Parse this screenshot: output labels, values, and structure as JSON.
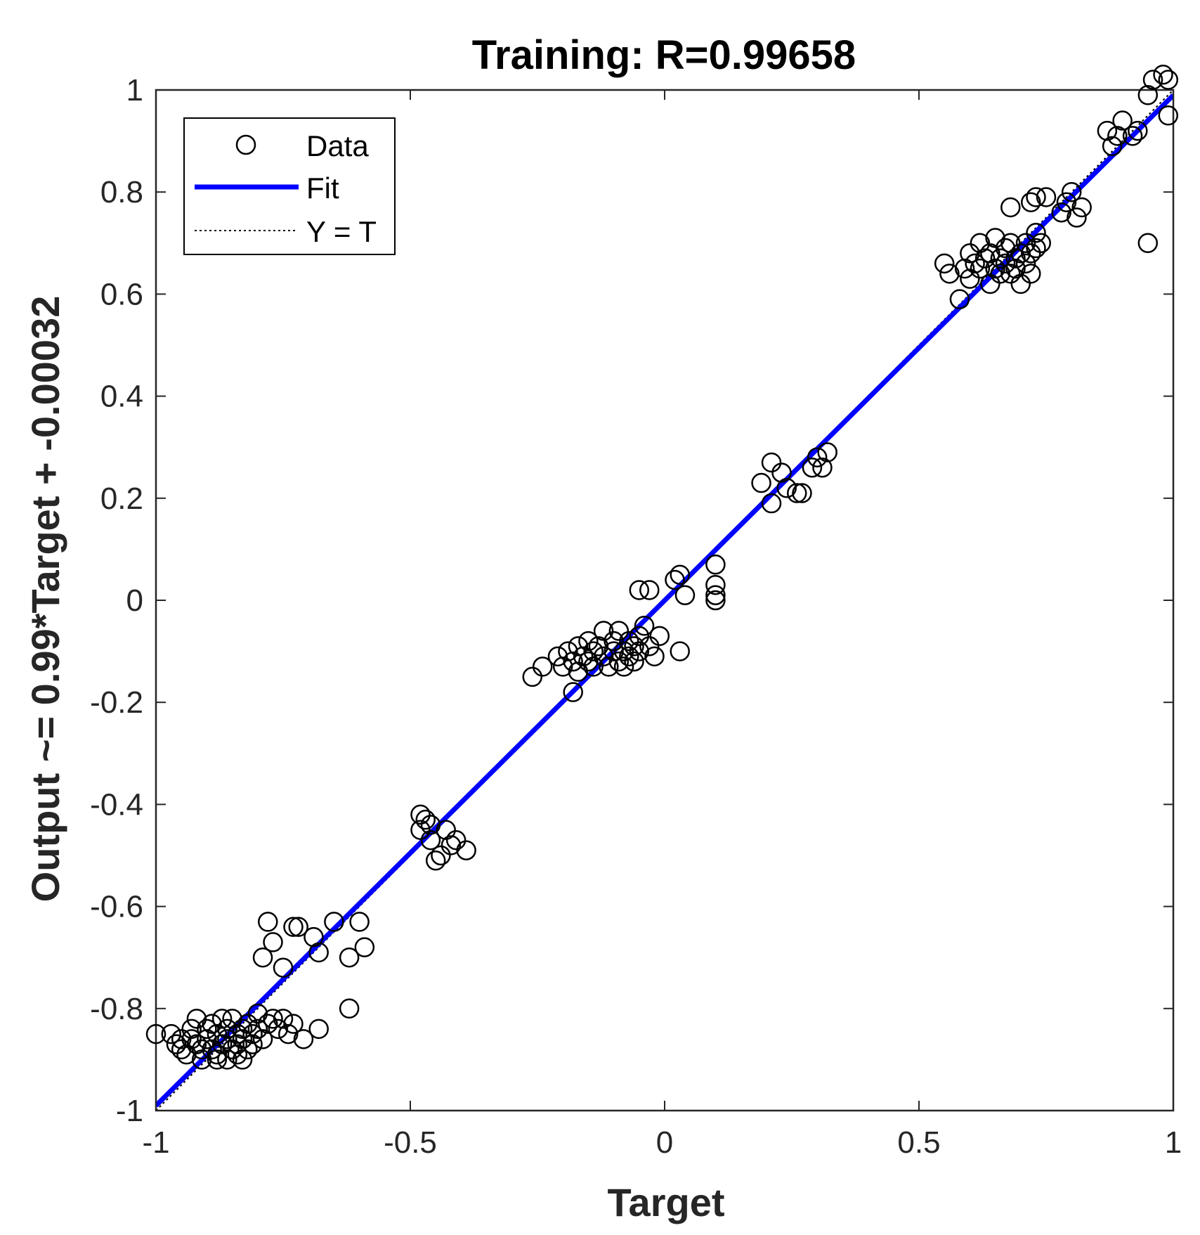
{
  "chart_data": {
    "type": "scatter",
    "title": "Training: R=0.99658",
    "xlabel": "Target",
    "ylabel": "Output ~= 0.99*Target + -0.00032",
    "xlim": [
      -1,
      1
    ],
    "ylim": [
      -1,
      1
    ],
    "xticks": [
      "-1",
      "-0.5",
      "0",
      "0.5",
      "1"
    ],
    "yticks": [
      "-1",
      "-0.8",
      "-0.6",
      "-0.4",
      "-0.2",
      "0",
      "0.2",
      "0.4",
      "0.6",
      "0.8",
      "1"
    ],
    "grid": false,
    "legend_position": "top-left",
    "legend": [
      "Data",
      "Fit",
      "Y = T"
    ],
    "colors": {
      "data": "#000000",
      "fit": "#0000ff",
      "identity": "#000000"
    },
    "fit": {
      "slope": 0.99,
      "intercept": -0.00032
    },
    "identity": {
      "slope": 1,
      "intercept": 0
    },
    "series": [
      {
        "name": "Data",
        "points": [
          [
            -1.0,
            -0.85
          ],
          [
            -0.97,
            -0.85
          ],
          [
            -0.96,
            -0.87
          ],
          [
            -0.95,
            -0.88
          ],
          [
            -0.94,
            -0.89
          ],
          [
            -0.93,
            -0.86
          ],
          [
            -0.92,
            -0.82
          ],
          [
            -0.92,
            -0.87
          ],
          [
            -0.91,
            -0.88
          ],
          [
            -0.9,
            -0.84
          ],
          [
            -0.9,
            -0.86
          ],
          [
            -0.89,
            -0.83
          ],
          [
            -0.89,
            -0.88
          ],
          [
            -0.88,
            -0.85
          ],
          [
            -0.88,
            -0.89
          ],
          [
            -0.87,
            -0.87
          ],
          [
            -0.87,
            -0.82
          ],
          [
            -0.86,
            -0.86
          ],
          [
            -0.86,
            -0.84
          ],
          [
            -0.85,
            -0.88
          ],
          [
            -0.85,
            -0.82
          ],
          [
            -0.84,
            -0.85
          ],
          [
            -0.84,
            -0.89
          ],
          [
            -0.84,
            -0.87
          ],
          [
            -0.83,
            -0.84
          ],
          [
            -0.83,
            -0.86
          ],
          [
            -0.82,
            -0.88
          ],
          [
            -0.82,
            -0.83
          ],
          [
            -0.81,
            -0.85
          ],
          [
            -0.81,
            -0.87
          ],
          [
            -0.8,
            -0.84
          ],
          [
            -0.8,
            -0.81
          ],
          [
            -0.79,
            -0.86
          ],
          [
            -0.78,
            -0.83
          ],
          [
            -0.77,
            -0.82
          ],
          [
            -0.76,
            -0.84
          ],
          [
            -0.75,
            -0.82
          ],
          [
            -0.74,
            -0.85
          ],
          [
            -0.73,
            -0.83
          ],
          [
            -0.71,
            -0.86
          ],
          [
            -0.68,
            -0.84
          ],
          [
            -0.62,
            -0.8
          ],
          [
            -0.88,
            -0.9
          ],
          [
            -0.86,
            -0.9
          ],
          [
            -0.83,
            -0.9
          ],
          [
            -0.93,
            -0.84
          ],
          [
            -0.95,
            -0.86
          ],
          [
            -0.91,
            -0.9
          ],
          [
            -0.78,
            -0.63
          ],
          [
            -0.77,
            -0.67
          ],
          [
            -0.79,
            -0.7
          ],
          [
            -0.75,
            -0.72
          ],
          [
            -0.73,
            -0.64
          ],
          [
            -0.72,
            -0.64
          ],
          [
            -0.69,
            -0.66
          ],
          [
            -0.68,
            -0.69
          ],
          [
            -0.65,
            -0.63
          ],
          [
            -0.62,
            -0.7
          ],
          [
            -0.6,
            -0.63
          ],
          [
            -0.59,
            -0.68
          ],
          [
            -0.48,
            -0.42
          ],
          [
            -0.48,
            -0.45
          ],
          [
            -0.47,
            -0.43
          ],
          [
            -0.46,
            -0.44
          ],
          [
            -0.46,
            -0.47
          ],
          [
            -0.45,
            -0.51
          ],
          [
            -0.44,
            -0.5
          ],
          [
            -0.43,
            -0.45
          ],
          [
            -0.42,
            -0.48
          ],
          [
            -0.41,
            -0.47
          ],
          [
            -0.39,
            -0.49
          ],
          [
            -0.26,
            -0.15
          ],
          [
            -0.24,
            -0.13
          ],
          [
            -0.21,
            -0.11
          ],
          [
            -0.2,
            -0.13
          ],
          [
            -0.19,
            -0.1
          ],
          [
            -0.18,
            -0.18
          ],
          [
            -0.18,
            -0.12
          ],
          [
            -0.17,
            -0.09
          ],
          [
            -0.17,
            -0.14
          ],
          [
            -0.16,
            -0.11
          ],
          [
            -0.15,
            -0.08
          ],
          [
            -0.15,
            -0.12
          ],
          [
            -0.14,
            -0.1
          ],
          [
            -0.14,
            -0.13
          ],
          [
            -0.13,
            -0.09
          ],
          [
            -0.12,
            -0.06
          ],
          [
            -0.12,
            -0.11
          ],
          [
            -0.11,
            -0.13
          ],
          [
            -0.1,
            -0.08
          ],
          [
            -0.1,
            -0.1
          ],
          [
            -0.09,
            -0.12
          ],
          [
            -0.09,
            -0.06
          ],
          [
            -0.08,
            -0.1
          ],
          [
            -0.08,
            -0.13
          ],
          [
            -0.07,
            -0.08
          ],
          [
            -0.07,
            -0.11
          ],
          [
            -0.06,
            -0.09
          ],
          [
            -0.06,
            -0.12
          ],
          [
            -0.05,
            -0.07
          ],
          [
            -0.05,
            -0.1
          ],
          [
            -0.04,
            -0.05
          ],
          [
            -0.03,
            -0.09
          ],
          [
            -0.02,
            -0.11
          ],
          [
            -0.01,
            -0.07
          ],
          [
            0.03,
            -0.1
          ],
          [
            -0.05,
            0.02
          ],
          [
            -0.03,
            0.02
          ],
          [
            0.02,
            0.04
          ],
          [
            0.03,
            0.05
          ],
          [
            0.04,
            0.01
          ],
          [
            0.1,
            0.07
          ],
          [
            0.1,
            0.03
          ],
          [
            0.1,
            0.01
          ],
          [
            0.1,
            0.0
          ],
          [
            0.19,
            0.23
          ],
          [
            0.21,
            0.27
          ],
          [
            0.21,
            0.19
          ],
          [
            0.23,
            0.25
          ],
          [
            0.24,
            0.22
          ],
          [
            0.26,
            0.21
          ],
          [
            0.27,
            0.21
          ],
          [
            0.29,
            0.26
          ],
          [
            0.3,
            0.28
          ],
          [
            0.31,
            0.26
          ],
          [
            0.32,
            0.29
          ],
          [
            0.55,
            0.66
          ],
          [
            0.56,
            0.64
          ],
          [
            0.58,
            0.59
          ],
          [
            0.59,
            0.65
          ],
          [
            0.6,
            0.68
          ],
          [
            0.6,
            0.63
          ],
          [
            0.61,
            0.66
          ],
          [
            0.62,
            0.7
          ],
          [
            0.62,
            0.65
          ],
          [
            0.63,
            0.67
          ],
          [
            0.64,
            0.62
          ],
          [
            0.64,
            0.68
          ],
          [
            0.65,
            0.65
          ],
          [
            0.65,
            0.71
          ],
          [
            0.66,
            0.67
          ],
          [
            0.66,
            0.64
          ],
          [
            0.67,
            0.69
          ],
          [
            0.67,
            0.66
          ],
          [
            0.68,
            0.64
          ],
          [
            0.68,
            0.7
          ],
          [
            0.69,
            0.67
          ],
          [
            0.69,
            0.65
          ],
          [
            0.7,
            0.68
          ],
          [
            0.7,
            0.62
          ],
          [
            0.71,
            0.66
          ],
          [
            0.71,
            0.7
          ],
          [
            0.72,
            0.68
          ],
          [
            0.72,
            0.64
          ],
          [
            0.73,
            0.69
          ],
          [
            0.73,
            0.72
          ],
          [
            0.74,
            0.7
          ],
          [
            0.68,
            0.77
          ],
          [
            0.72,
            0.78
          ],
          [
            0.73,
            0.79
          ],
          [
            0.75,
            0.79
          ],
          [
            0.78,
            0.76
          ],
          [
            0.79,
            0.78
          ],
          [
            0.8,
            0.8
          ],
          [
            0.81,
            0.75
          ],
          [
            0.82,
            0.77
          ],
          [
            0.87,
            0.92
          ],
          [
            0.88,
            0.89
          ],
          [
            0.89,
            0.91
          ],
          [
            0.9,
            0.94
          ],
          [
            0.92,
            0.91
          ],
          [
            0.93,
            0.92
          ],
          [
            0.95,
            0.99
          ],
          [
            0.96,
            1.02
          ],
          [
            0.98,
            1.03
          ],
          [
            0.99,
            1.02
          ],
          [
            0.99,
            0.95
          ],
          [
            0.95,
            0.7
          ]
        ]
      }
    ]
  }
}
